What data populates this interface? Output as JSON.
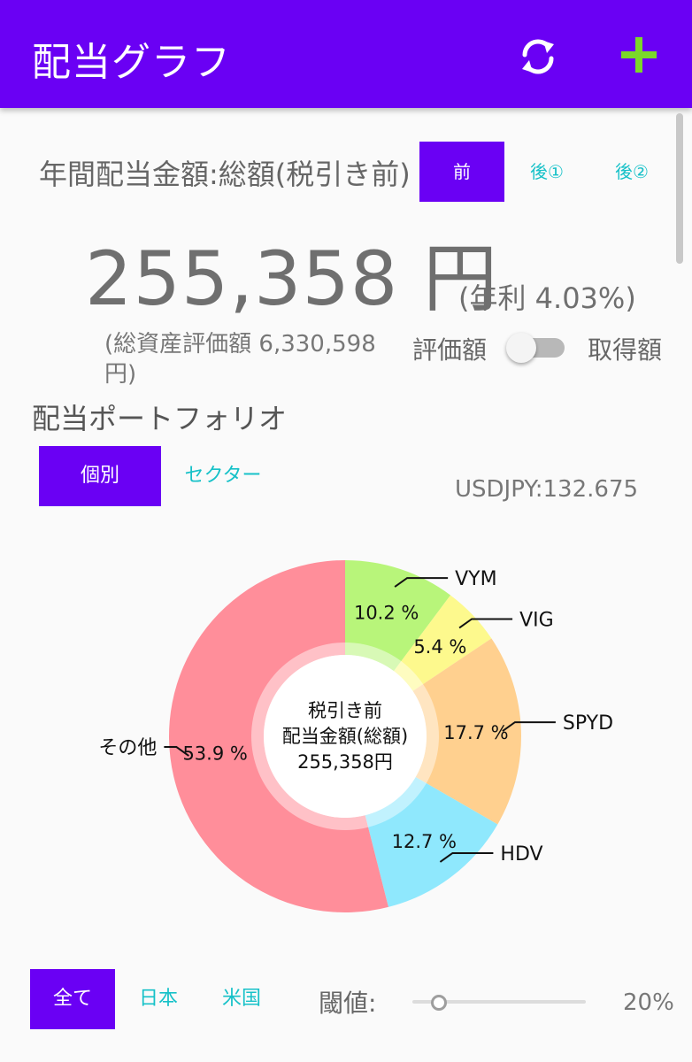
{
  "appbar": {
    "title": "配当グラフ",
    "color": "#6a00f4",
    "refresh_icon": "refresh-icon",
    "add_icon": "plus-icon"
  },
  "summary": {
    "label": "年間配当金額:総額(税引き前)",
    "tax_buttons": [
      {
        "label": "前",
        "active": true
      },
      {
        "label": "後①",
        "active": false
      },
      {
        "label": "後②",
        "active": false
      }
    ],
    "amount": "255,358 円",
    "yield": "(年利 4.03%)",
    "total_assets": "(総資産評価額 6,330,598 円)",
    "toggle_left": "評価額",
    "toggle_right": "取得額",
    "toggle_on": false
  },
  "portfolio": {
    "title": "配当ポートフォリオ",
    "tabs": [
      {
        "label": "個別",
        "active": true
      },
      {
        "label": "セクター",
        "active": false
      }
    ],
    "fx_rate": "USDJPY:132.675"
  },
  "chart_data": {
    "type": "pie",
    "center_lines": [
      "税引き前",
      "配当金額(総額)",
      "255,358円"
    ],
    "slices": [
      {
        "name": "VYM",
        "percent": 10.2,
        "label": "10.2 %",
        "color": "#b8f57a"
      },
      {
        "name": "VIG",
        "percent": 5.4,
        "label": "5.4 %",
        "color": "#fdf98d"
      },
      {
        "name": "SPYD",
        "percent": 17.7,
        "label": "17.7 %",
        "color": "#ffd08f"
      },
      {
        "name": "HDV",
        "percent": 12.7,
        "label": "12.7 %",
        "color": "#8fe8fd"
      },
      {
        "name": "その他",
        "percent": 53.9,
        "label": "53.9 %",
        "color": "#ff8e9a"
      }
    ]
  },
  "filters": {
    "buttons": [
      {
        "label": "全て",
        "active": true
      },
      {
        "label": "日本",
        "active": false
      },
      {
        "label": "米国",
        "active": false
      }
    ],
    "threshold_label": "閾値:",
    "threshold_value": "20%",
    "threshold_fraction": 0.2
  }
}
